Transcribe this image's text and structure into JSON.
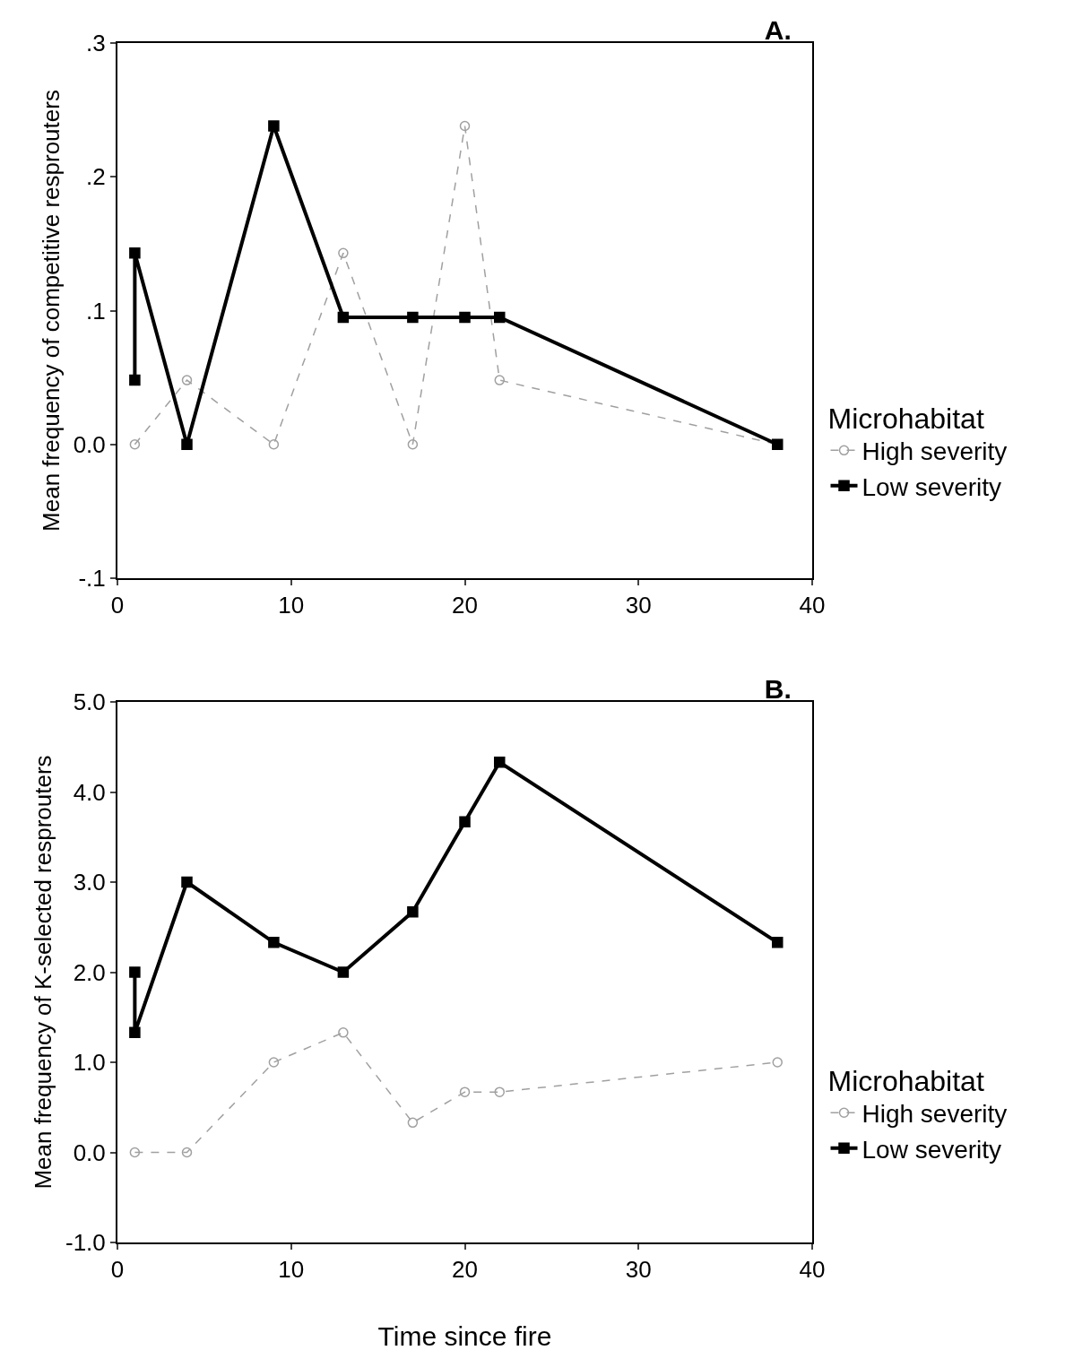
{
  "chart_data": [
    {
      "type": "line",
      "title": "A.",
      "ylabel": "Mean frequency of competitive resprouters",
      "legend_title": "Microhabitat",
      "legend": "right",
      "grid": false,
      "xlim": [
        0,
        40
      ],
      "xticks": [
        0,
        10,
        20,
        30,
        40
      ],
      "ylim": [
        -0.1,
        0.3
      ],
      "yticks": [
        {
          "value": -0.1,
          "label": "-.1"
        },
        {
          "value": 0,
          "label": "0.0"
        },
        {
          "value": 0.1,
          "label": ".1"
        },
        {
          "value": 0.2,
          "label": ".2"
        },
        {
          "value": 0.3,
          "label": ".3"
        }
      ],
      "series": [
        {
          "name": "High severity",
          "color": "#a0a0a0",
          "marker": "circle",
          "line_style": "dashed",
          "x": [
            1,
            4,
            9,
            13,
            17,
            20,
            22,
            38
          ],
          "values": [
            0,
            0.048,
            0,
            0.143,
            0,
            0.238,
            0.048,
            0
          ]
        },
        {
          "name": "Low severity",
          "color": "#000000",
          "marker": "square",
          "line_style": "solid",
          "x": [
            1,
            1,
            4,
            9,
            13,
            17,
            20,
            22,
            38
          ],
          "values": [
            0.048,
            0.143,
            0,
            0.238,
            0.095,
            0.095,
            0.095,
            0.095,
            0
          ]
        }
      ]
    },
    {
      "type": "line",
      "title": "B.",
      "xlabel": "Time since fire",
      "ylabel": "Mean frequency of K-selected resprouters",
      "legend_title": "Microhabitat",
      "legend": "right",
      "grid": false,
      "xlim": [
        0,
        40
      ],
      "xticks": [
        0,
        10,
        20,
        30,
        40
      ],
      "ylim": [
        -1,
        5
      ],
      "yticks": [
        {
          "value": -1,
          "label": "-1.0"
        },
        {
          "value": 0,
          "label": "0.0"
        },
        {
          "value": 1,
          "label": "1.0"
        },
        {
          "value": 2,
          "label": "2.0"
        },
        {
          "value": 3,
          "label": "3.0"
        },
        {
          "value": 4,
          "label": "4.0"
        },
        {
          "value": 5,
          "label": "5.0"
        }
      ],
      "series": [
        {
          "name": "High severity",
          "color": "#a0a0a0",
          "marker": "circle",
          "line_style": "dashed",
          "x": [
            1,
            4,
            9,
            13,
            17,
            20,
            22,
            38
          ],
          "values": [
            0,
            0,
            1.0,
            1.33,
            0.33,
            0.67,
            0.67,
            1.0
          ]
        },
        {
          "name": "Low severity",
          "color": "#000000",
          "marker": "square",
          "line_style": "solid",
          "x": [
            1,
            1,
            4,
            9,
            13,
            17,
            20,
            22,
            38
          ],
          "values": [
            2.0,
            1.33,
            3.0,
            2.33,
            2.0,
            2.67,
            3.67,
            4.33,
            2.33
          ]
        }
      ]
    }
  ]
}
